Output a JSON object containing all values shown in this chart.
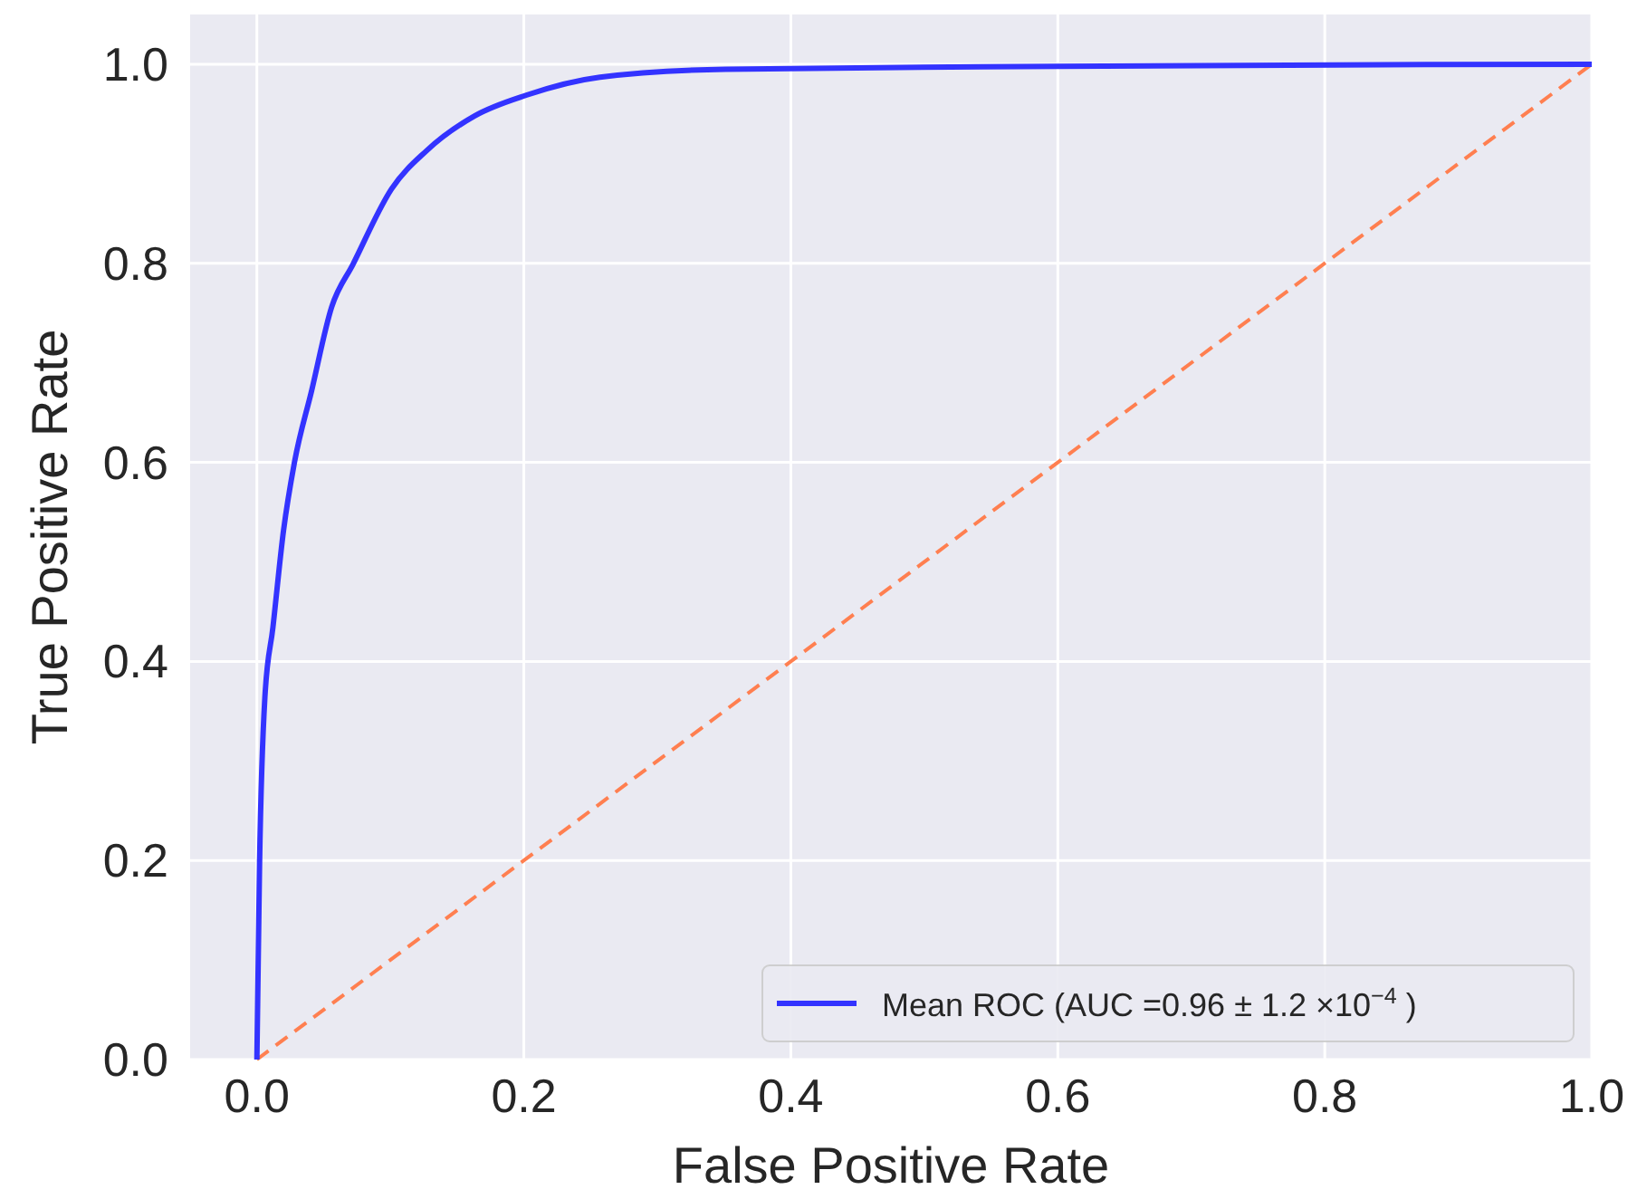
{
  "chart_data": {
    "type": "line",
    "xlabel": "False Positive Rate",
    "ylabel": "True Positive Rate",
    "xlim": [
      -0.05,
      1.0
    ],
    "ylim": [
      0,
      1.05
    ],
    "xticks": [
      {
        "value": 0,
        "label": "0.0"
      },
      0.2,
      0.4,
      0.6,
      0.8,
      {
        "value": 1,
        "label": "1.0"
      }
    ],
    "yticks": [
      {
        "value": 0,
        "label": "0.0"
      },
      0.2,
      0.4,
      0.6,
      0.8,
      {
        "value": 1,
        "label": "1.0"
      }
    ],
    "grid": true,
    "legend": "bottom right",
    "series": [
      {
        "name": "Mean ROC (AUC =0.96 ± 1.2 ×10$^{−4}$ )",
        "color": "#3333ff",
        "line_style": "solid",
        "x": [
          0,
          0.002,
          0.006,
          0.012,
          0.02,
          0.028,
          0.041,
          0.056,
          0.072,
          0.101,
          0.127,
          0.163,
          0.202,
          0.257,
          0.351,
          0.6,
          1.0
        ],
        "values": [
          0,
          0.196,
          0.364,
          0.434,
          0.532,
          0.599,
          0.672,
          0.756,
          0.799,
          0.875,
          0.913,
          0.948,
          0.969,
          0.987,
          0.995,
          0.998,
          1.0
        ]
      },
      {
        "color": "#ff7f50",
        "line_style": "dashed",
        "x": [
          0,
          1
        ],
        "values": [
          0,
          1
        ]
      }
    ]
  }
}
